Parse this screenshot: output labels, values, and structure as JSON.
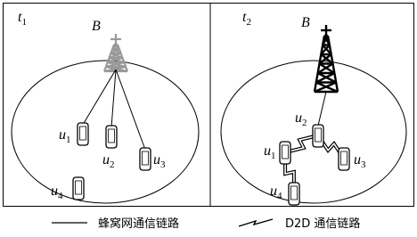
{
  "panels": [
    {
      "time": {
        "letter": "t",
        "index": "1"
      },
      "base_station": "B",
      "users": [
        {
          "letter": "u",
          "index": "1"
        },
        {
          "letter": "u",
          "index": "2"
        },
        {
          "letter": "u",
          "index": "3"
        },
        {
          "letter": "u",
          "index": "4"
        }
      ]
    },
    {
      "time": {
        "letter": "t",
        "index": "2"
      },
      "base_station": "B",
      "users": [
        {
          "letter": "u",
          "index": "1"
        },
        {
          "letter": "u",
          "index": "2"
        },
        {
          "letter": "u",
          "index": "3"
        },
        {
          "letter": "u",
          "index": "4"
        }
      ]
    }
  ],
  "legend": [
    "蜂窝网通信链路",
    "D2D 通信链路"
  ]
}
